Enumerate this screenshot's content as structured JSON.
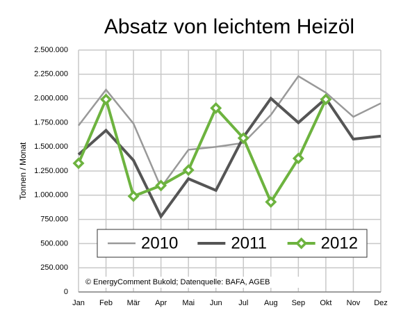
{
  "chart_data": {
    "type": "line",
    "title": "Absatz von leichtem Heizöl",
    "y_label": "Tonnen / Monat",
    "annotation": "© EnergyComment Bukold; Datenquelle: BAFA, AGEB",
    "categories": [
      "Jan",
      "Feb",
      "Mär",
      "Apr",
      "Mai",
      "Jun",
      "Jul",
      "Aug",
      "Sep",
      "Okt",
      "Nov",
      "Dez"
    ],
    "series": [
      {
        "name": "2010",
        "color": "#999999",
        "width": 2.5,
        "values": [
          1720000,
          2090000,
          1740000,
          1080000,
          1470000,
          1500000,
          1540000,
          1830000,
          2230000,
          2060000,
          1810000,
          1950000
        ]
      },
      {
        "name": "2011",
        "color": "#555555",
        "width": 4,
        "values": [
          1420000,
          1670000,
          1360000,
          780000,
          1170000,
          1050000,
          1600000,
          2000000,
          1750000,
          2000000,
          1580000,
          1610000
        ]
      },
      {
        "name": "2012",
        "color": "#6db33f",
        "width": 4,
        "marker": "diamond",
        "values": [
          1330000,
          1990000,
          990000,
          1100000,
          1260000,
          1900000,
          1590000,
          930000,
          1380000,
          1990000,
          null,
          null
        ]
      }
    ],
    "ylim": [
      0,
      2500000
    ],
    "yticks": [
      0,
      {
        "value": 250000,
        "label": "250.000"
      },
      {
        "value": 500000,
        "label": "500.000"
      },
      {
        "value": 750000,
        "label": "750.000"
      },
      {
        "value": 1000000,
        "label": "1.000.000"
      },
      {
        "value": 1250000,
        "label": "1.250.000"
      },
      {
        "value": 1500000,
        "label": "1.500.000"
      },
      {
        "value": 1750000,
        "label": "1.750.000"
      },
      {
        "value": 2000000,
        "label": "2.000.000"
      },
      {
        "value": 2250000,
        "label": "2.250.000"
      },
      {
        "value": 2500000,
        "label": "2.500.000"
      }
    ],
    "grid": true,
    "legend": "bottom"
  }
}
